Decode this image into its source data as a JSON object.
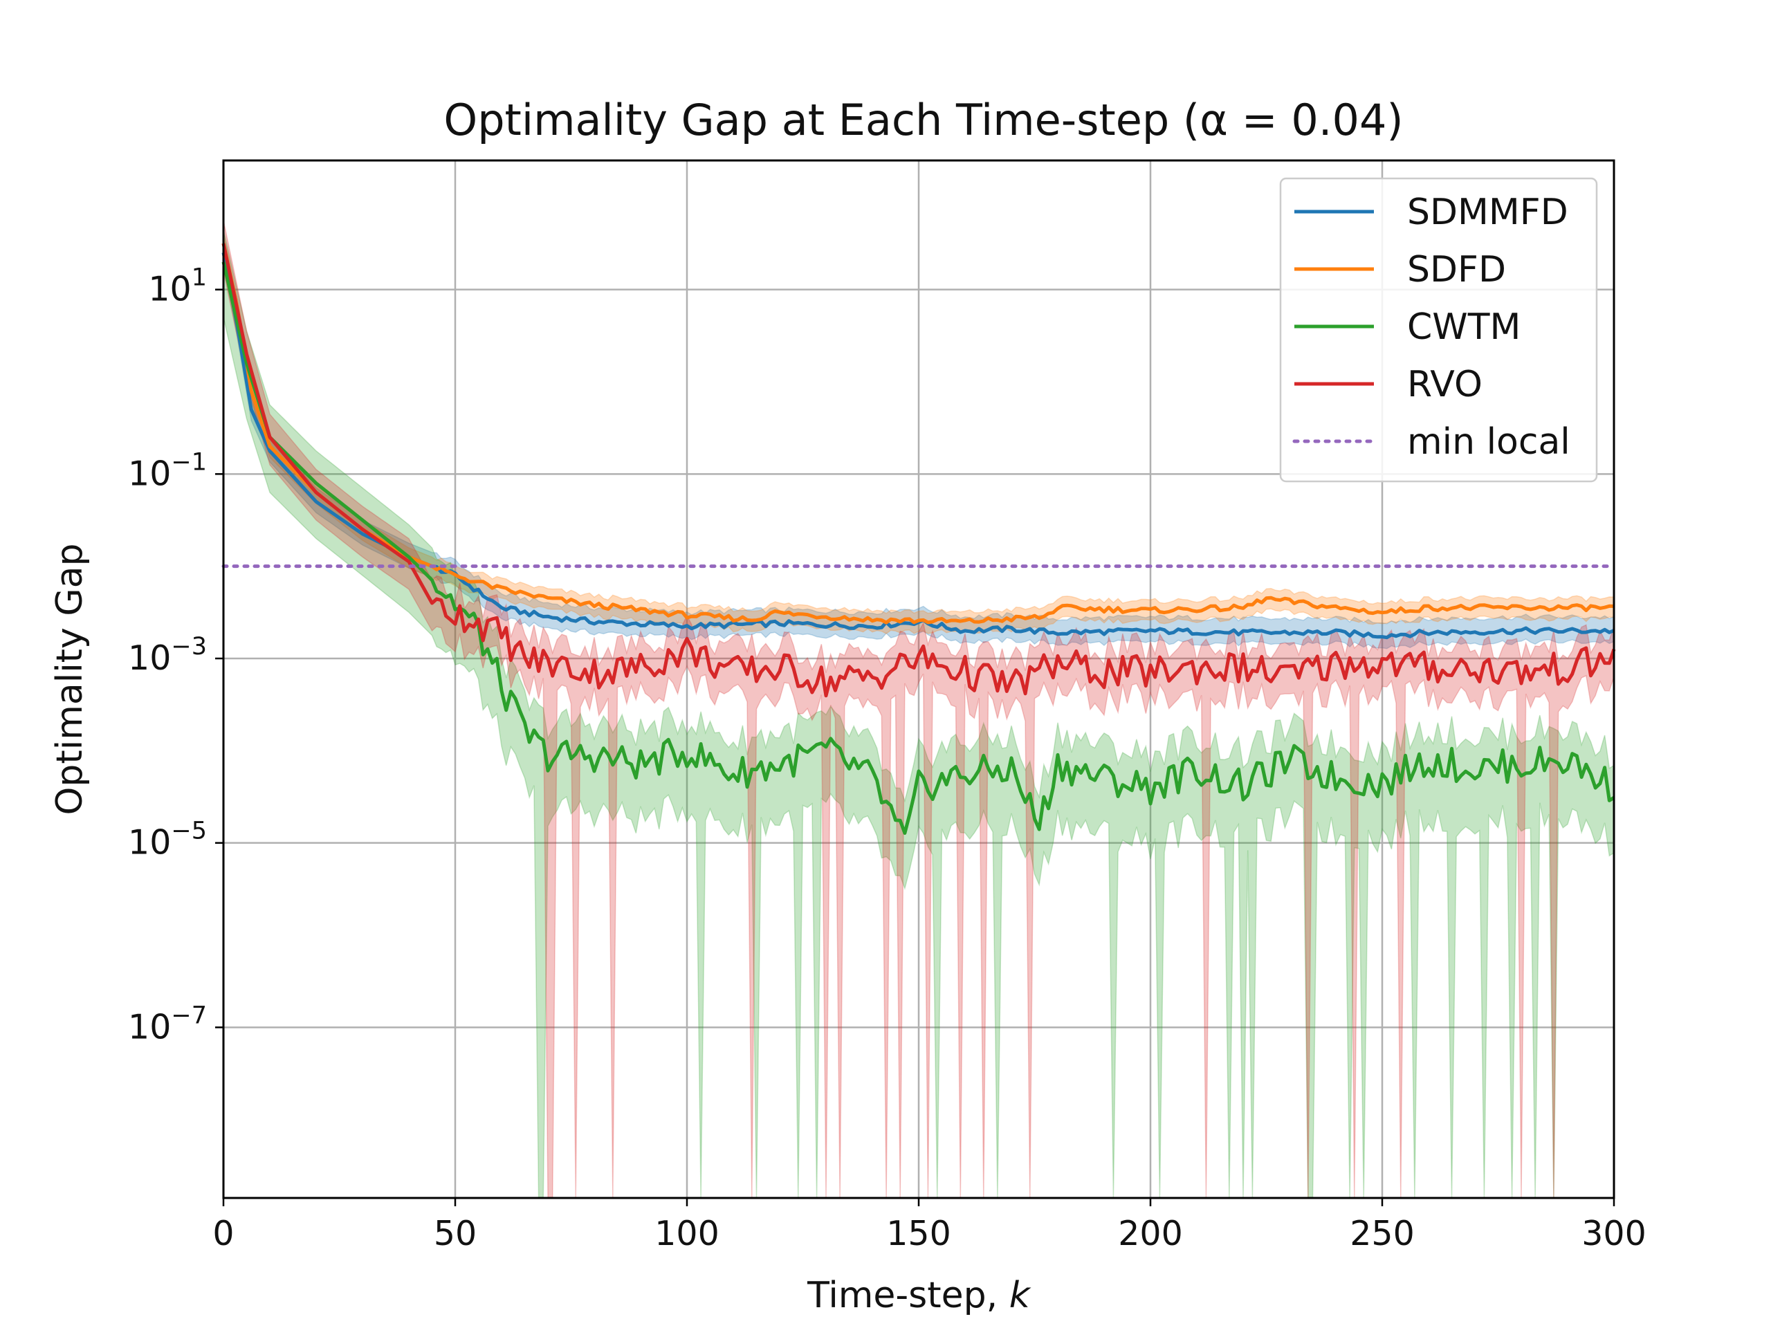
{
  "chart_data": {
    "type": "line",
    "title": "Optimality Gap at Each Time-step (α = 0.04)",
    "xlabel": "Time-step, k",
    "ylabel": "Optimality Gap",
    "xlim": [
      0,
      300
    ],
    "ylim_log10": [
      -8.85,
      2.4
    ],
    "y_scale": "log",
    "grid": true,
    "legend_position": "top-right",
    "x_ticks": [
      0,
      50,
      100,
      150,
      200,
      250,
      300
    ],
    "y_ticks": [
      {
        "exp": 1,
        "base": "10",
        "sup": "1"
      },
      {
        "exp": -1,
        "base": "10",
        "sup": "−1"
      },
      {
        "exp": -3,
        "base": "10",
        "sup": "−3"
      },
      {
        "exp": -5,
        "base": "10",
        "sup": "−5"
      },
      {
        "exp": -7,
        "base": "10",
        "sup": "−7"
      }
    ],
    "series": [
      {
        "name": "SDMMFD",
        "color": "#1f77b4",
        "points": [
          [
            0,
            1.4
          ],
          [
            3,
            0.6
          ],
          [
            6,
            -0.3
          ],
          [
            10,
            -0.75
          ],
          [
            20,
            -1.3
          ],
          [
            30,
            -1.65
          ],
          [
            40,
            -1.9
          ],
          [
            50,
            -2.1
          ],
          [
            60,
            -2.45
          ],
          [
            70,
            -2.55
          ],
          [
            80,
            -2.6
          ],
          [
            100,
            -2.65
          ],
          [
            120,
            -2.62
          ],
          [
            140,
            -2.65
          ],
          [
            150,
            -2.6
          ],
          [
            160,
            -2.7
          ],
          [
            170,
            -2.68
          ],
          [
            180,
            -2.72
          ],
          [
            200,
            -2.7
          ],
          [
            220,
            -2.72
          ],
          [
            240,
            -2.72
          ],
          [
            250,
            -2.75
          ],
          [
            260,
            -2.72
          ],
          [
            280,
            -2.7
          ],
          [
            300,
            -2.7
          ]
        ],
        "band": [
          0.15,
          0.12
        ]
      },
      {
        "name": "SDFD",
        "color": "#ff7f0e",
        "points": [
          [
            0,
            1.5
          ],
          [
            3,
            0.8
          ],
          [
            6,
            -0.1
          ],
          [
            10,
            -0.7
          ],
          [
            20,
            -1.2
          ],
          [
            30,
            -1.6
          ],
          [
            40,
            -1.9
          ],
          [
            50,
            -2.1
          ],
          [
            60,
            -2.25
          ],
          [
            70,
            -2.35
          ],
          [
            80,
            -2.42
          ],
          [
            100,
            -2.53
          ],
          [
            115,
            -2.58
          ],
          [
            118,
            -2.5
          ],
          [
            140,
            -2.58
          ],
          [
            160,
            -2.6
          ],
          [
            177,
            -2.55
          ],
          [
            180,
            -2.45
          ],
          [
            200,
            -2.48
          ],
          [
            220,
            -2.45
          ],
          [
            225,
            -2.35
          ],
          [
            240,
            -2.45
          ],
          [
            250,
            -2.5
          ],
          [
            260,
            -2.45
          ],
          [
            280,
            -2.45
          ],
          [
            300,
            -2.45
          ]
        ],
        "band": [
          0.1,
          0.12
        ]
      },
      {
        "name": "CWTM",
        "color": "#2ca02c",
        "points": [
          [
            0,
            1.3
          ],
          [
            5,
            0.2
          ],
          [
            10,
            -0.6
          ],
          [
            20,
            -1.1
          ],
          [
            30,
            -1.5
          ],
          [
            40,
            -1.9
          ],
          [
            50,
            -2.4
          ],
          [
            55,
            -2.7
          ],
          [
            60,
            -3.3
          ],
          [
            65,
            -3.8
          ],
          [
            70,
            -4.05
          ],
          [
            80,
            -4.05
          ],
          [
            90,
            -4.15
          ],
          [
            100,
            -4.0
          ],
          [
            110,
            -4.25
          ],
          [
            120,
            -4.15
          ],
          [
            130,
            -4.0
          ],
          [
            140,
            -4.3
          ],
          [
            147,
            -5.0
          ],
          [
            150,
            -4.4
          ],
          [
            160,
            -4.25
          ],
          [
            170,
            -4.2
          ],
          [
            176,
            -4.8
          ],
          [
            180,
            -4.15
          ],
          [
            190,
            -4.3
          ],
          [
            200,
            -4.4
          ],
          [
            210,
            -4.2
          ],
          [
            220,
            -4.4
          ],
          [
            230,
            -4.1
          ],
          [
            240,
            -4.3
          ],
          [
            250,
            -4.35
          ],
          [
            260,
            -4.1
          ],
          [
            270,
            -4.2
          ],
          [
            280,
            -4.15
          ],
          [
            290,
            -4.1
          ],
          [
            300,
            -4.4
          ]
        ],
        "band": [
          0.35,
          0.6
        ]
      },
      {
        "name": "RVO",
        "color": "#d62728",
        "points": [
          [
            0,
            1.5
          ],
          [
            5,
            0.3
          ],
          [
            10,
            -0.6
          ],
          [
            20,
            -1.2
          ],
          [
            30,
            -1.6
          ],
          [
            40,
            -1.95
          ],
          [
            45,
            -2.4
          ],
          [
            50,
            -2.5
          ],
          [
            55,
            -2.6
          ],
          [
            60,
            -2.75
          ],
          [
            65,
            -3.0
          ],
          [
            70,
            -3.05
          ],
          [
            80,
            -3.15
          ],
          [
            90,
            -3.1
          ],
          [
            100,
            -2.9
          ],
          [
            110,
            -3.15
          ],
          [
            120,
            -3.1
          ],
          [
            130,
            -3.25
          ],
          [
            140,
            -3.2
          ],
          [
            150,
            -3.0
          ],
          [
            160,
            -3.15
          ],
          [
            170,
            -3.3
          ],
          [
            180,
            -3.05
          ],
          [
            190,
            -3.15
          ],
          [
            200,
            -3.15
          ],
          [
            210,
            -3.1
          ],
          [
            220,
            -3.1
          ],
          [
            230,
            -3.2
          ],
          [
            240,
            -3.05
          ],
          [
            250,
            -3.05
          ],
          [
            260,
            -3.1
          ],
          [
            270,
            -3.1
          ],
          [
            280,
            -3.15
          ],
          [
            290,
            -3.1
          ],
          [
            300,
            -3.0
          ]
        ],
        "band": [
          0.25,
          0.3
        ]
      },
      {
        "name": "min local",
        "color": "#9467bd",
        "style": "dotted",
        "points": [
          [
            0,
            -2.0
          ],
          [
            300,
            -2.0
          ]
        ]
      }
    ]
  }
}
